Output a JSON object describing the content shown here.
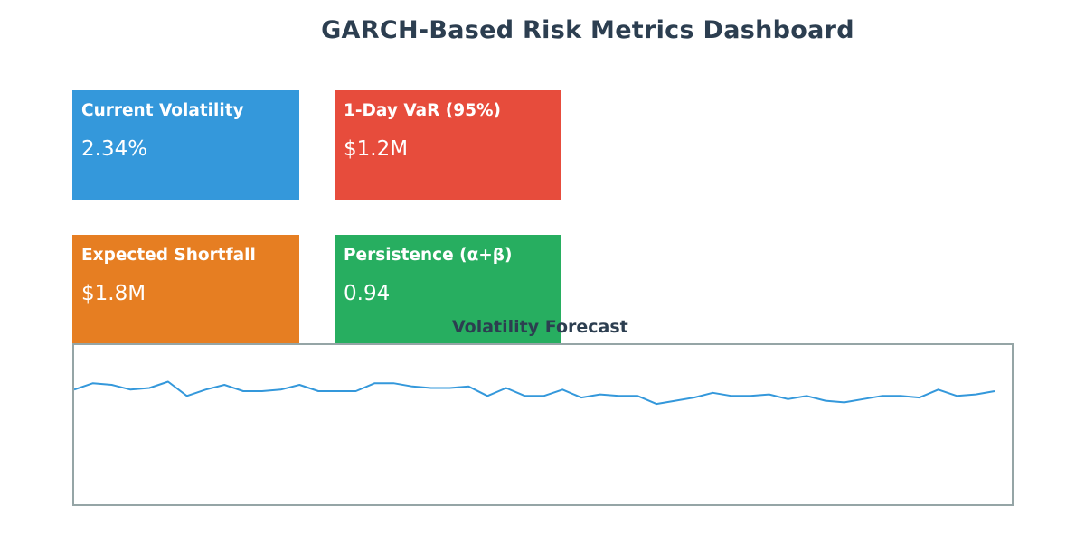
{
  "dashboard": {
    "title": "GARCH-Based Risk Metrics Dashboard"
  },
  "cards": [
    {
      "label": "Current Volatility",
      "value": "2.34%",
      "color": "#3498db"
    },
    {
      "label": "1-Day VaR (95%)",
      "value": "$1.2M",
      "color": "#e74c3c"
    },
    {
      "label": "Expected Shortfall",
      "value": "$1.8M",
      "color": "#e67e22"
    },
    {
      "label": "Persistence (α+β)",
      "value": "0.94",
      "color": "#27ae60"
    }
  ],
  "chart_data": {
    "type": "line",
    "title": "Volatility Forecast",
    "xlabel": "",
    "ylabel": "",
    "grid": false,
    "line_color": "#3498db",
    "frame_color": "#95a5a6",
    "ylim": [
      0,
      100
    ],
    "x": [
      0,
      1,
      2,
      3,
      4,
      5,
      6,
      7,
      8,
      9,
      10,
      11,
      12,
      13,
      14,
      15,
      16,
      17,
      18,
      19,
      20,
      21,
      22,
      23,
      24,
      25,
      26,
      27,
      28,
      29,
      30,
      31,
      32,
      33,
      34,
      35,
      36,
      37,
      38,
      39,
      40,
      41,
      42,
      43,
      44,
      45,
      46,
      47,
      48,
      49
    ],
    "values": [
      72,
      76,
      75,
      72,
      73,
      77,
      68,
      72,
      75,
      71,
      71,
      72,
      75,
      71,
      71,
      71,
      76,
      76,
      74,
      73,
      73,
      74,
      68,
      73,
      68,
      68,
      72,
      67,
      69,
      68,
      68,
      63,
      65,
      67,
      70,
      68,
      68,
      69,
      66,
      68,
      65,
      64,
      66,
      68,
      68,
      67,
      72,
      68,
      69,
      71
    ]
  }
}
